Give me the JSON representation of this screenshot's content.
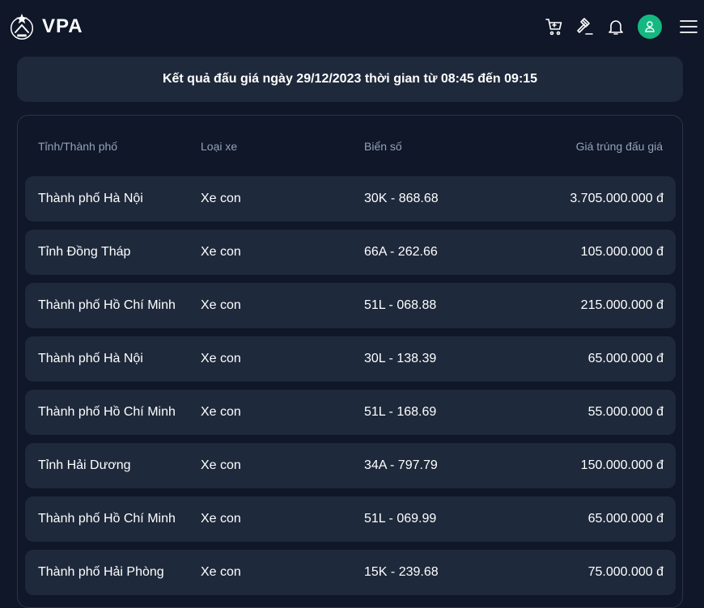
{
  "header": {
    "brand": "VPA",
    "icons": [
      "cart-icon",
      "gavel-icon",
      "bell-icon",
      "user-icon",
      "menu-icon"
    ]
  },
  "banner": {
    "title": "Kết quả đấu giá ngày 29/12/2023 thời gian từ 08:45 đến 09:15"
  },
  "table": {
    "columns": [
      "Tỉnh/Thành phố",
      "Loại xe",
      "Biển số",
      "Giá trúng đấu giá"
    ],
    "rows": [
      {
        "province": "Thành phố Hà Nội",
        "type": "Xe con",
        "plate": "30K - 868.68",
        "price": "3.705.000.000 đ"
      },
      {
        "province": "Tỉnh Đồng Tháp",
        "type": "Xe con",
        "plate": "66A - 262.66",
        "price": "105.000.000 đ"
      },
      {
        "province": "Thành phố Hồ Chí Minh",
        "type": "Xe con",
        "plate": "51L - 068.88",
        "price": "215.000.000 đ"
      },
      {
        "province": "Thành phố Hà Nội",
        "type": "Xe con",
        "plate": "30L - 138.39",
        "price": "65.000.000 đ"
      },
      {
        "province": "Thành phố Hồ Chí Minh",
        "type": "Xe con",
        "plate": "51L - 168.69",
        "price": "55.000.000 đ"
      },
      {
        "province": "Tỉnh Hải Dương",
        "type": "Xe con",
        "plate": "34A - 797.79",
        "price": "150.000.000 đ"
      },
      {
        "province": "Thành phố Hồ Chí Minh",
        "type": "Xe con",
        "plate": "51L - 069.99",
        "price": "65.000.000 đ"
      },
      {
        "province": "Thành phố Hải Phòng",
        "type": "Xe con",
        "plate": "15K - 239.68",
        "price": "75.000.000 đ"
      }
    ]
  },
  "colors": {
    "background": "#0f1729",
    "surface": "#1e293b",
    "muted_text": "#94a3b8",
    "avatar": "#14b880"
  }
}
